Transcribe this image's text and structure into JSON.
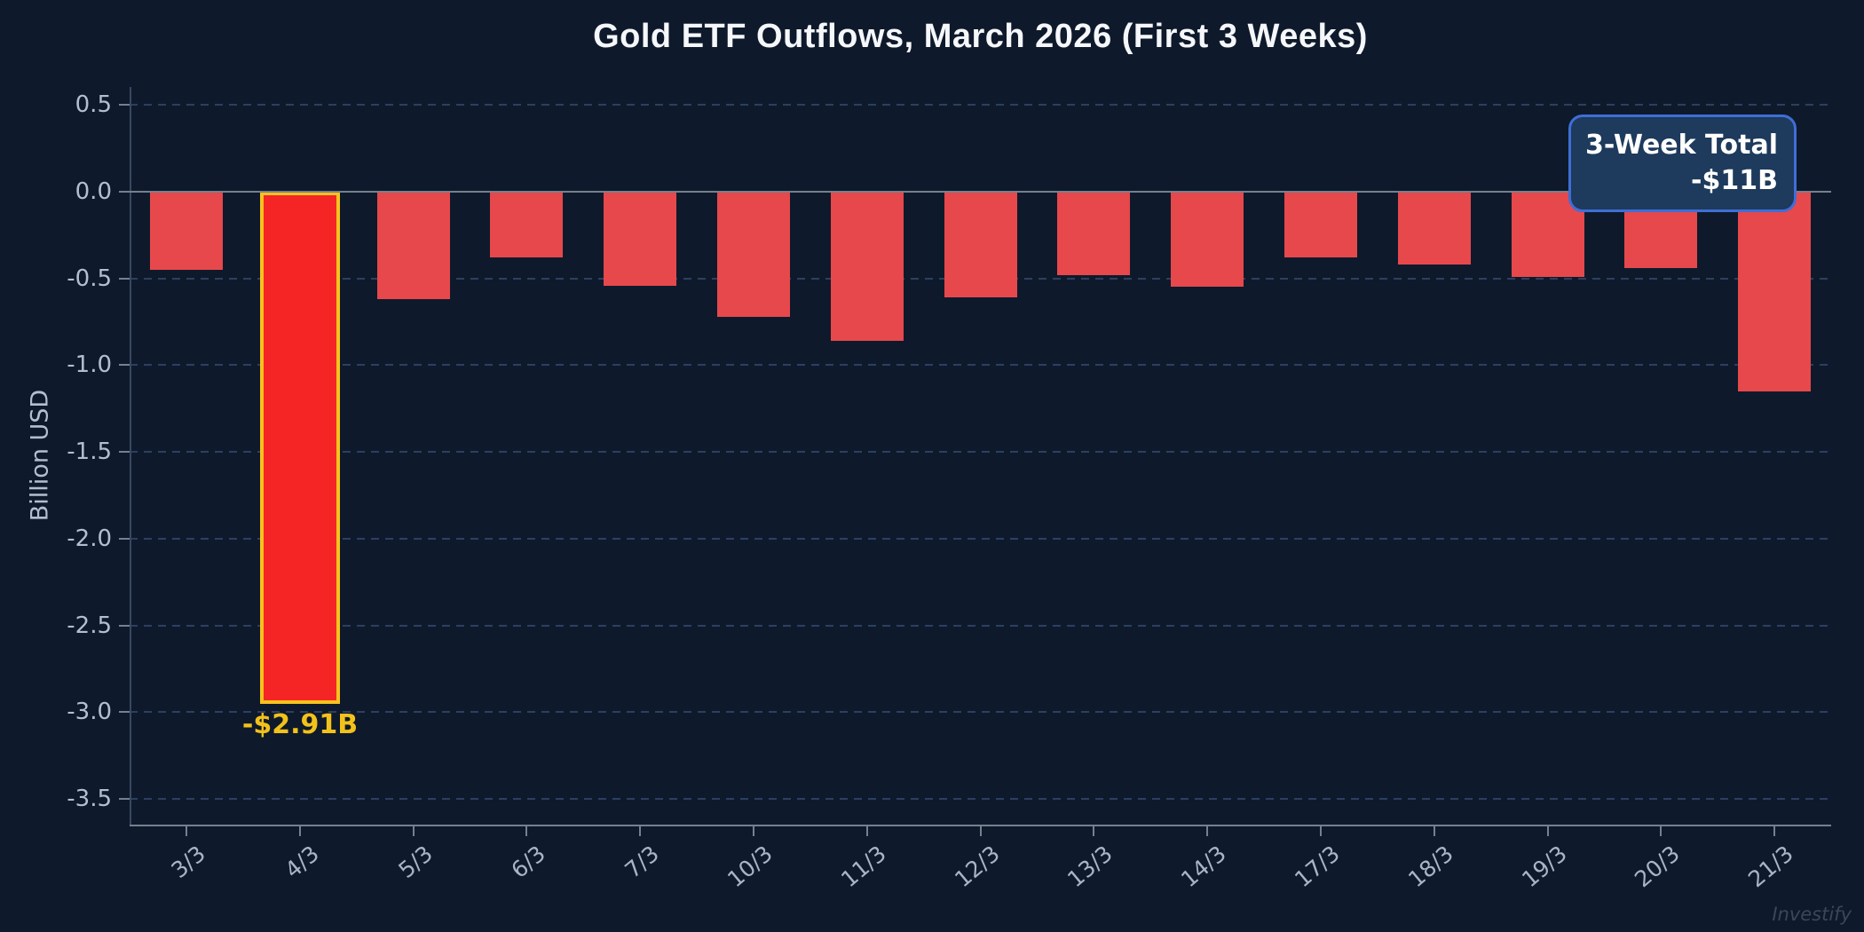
{
  "title": "Gold ETF Outflows, March 2026 (First 3 Weeks)",
  "watermark": "Investify",
  "annotation": {
    "label": "3-Week Total",
    "value": "-$11B"
  },
  "colors": {
    "background": "#0e1a2b",
    "bar": "#e6484c",
    "highlight_bar": "#f52525",
    "highlight_border": "#f6c21e",
    "highlight_label": "#f3c11b",
    "gridline": "#2c3f63",
    "zero_line": "#76808e",
    "axis_text": "#b3bfce",
    "annotation_fill": "#1e3a5c",
    "annotation_border": "#3f6ed6",
    "title_text": "#f5f7fa"
  },
  "chart_data": {
    "type": "bar",
    "title": "Gold ETF Outflows, March 2026 (First 3 Weeks)",
    "xlabel": "",
    "ylabel": "Billion USD",
    "categories": [
      "3/3",
      "4/3",
      "5/3",
      "6/3",
      "7/3",
      "10/3",
      "11/3",
      "12/3",
      "13/3",
      "14/3",
      "17/3",
      "18/3",
      "19/3",
      "20/3",
      "21/3"
    ],
    "values": [
      -0.45,
      -2.91,
      -0.62,
      -0.38,
      -0.54,
      -0.72,
      -0.86,
      -0.61,
      -0.48,
      -0.55,
      -0.38,
      -0.42,
      -0.49,
      -0.44,
      -1.15
    ],
    "yticks": [
      0.5,
      0.0,
      -0.5,
      -1.0,
      -1.5,
      -2.0,
      -2.5,
      -3.0,
      -3.5
    ],
    "ylim": [
      -3.65,
      0.6
    ],
    "grid": "dashed horizontal gridlines at each 0.5 step, solid line at 0",
    "legend_position": "none",
    "highlight": {
      "index": 1,
      "category": "4/3",
      "label": "-$2.91B"
    },
    "annotation": {
      "label": "3-Week Total",
      "value": "-$11B",
      "position": "top-right"
    }
  }
}
